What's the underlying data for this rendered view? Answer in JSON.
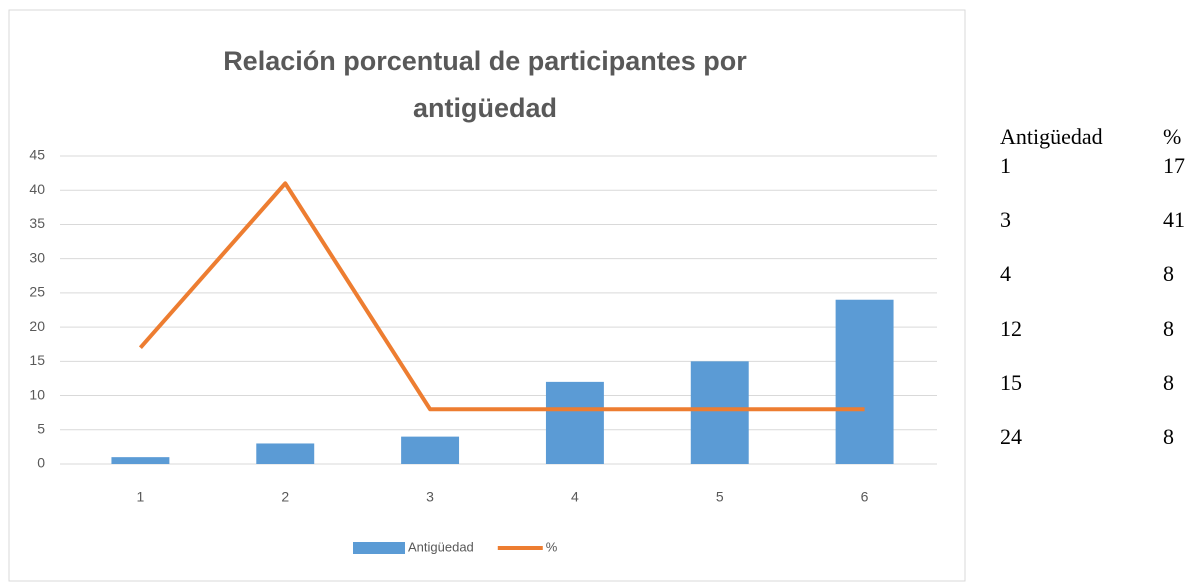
{
  "chart_data": {
    "type": "combo",
    "title": "Relación porcentual de participantes por antigüedad",
    "categories": [
      "1",
      "2",
      "3",
      "4",
      "5",
      "6"
    ],
    "series": [
      {
        "name": "Antigüedad",
        "type": "bar",
        "color": "#5b9bd5",
        "values": [
          1,
          3,
          4,
          12,
          15,
          24
        ]
      },
      {
        "name": "%",
        "type": "line",
        "color": "#ed7d31",
        "values": [
          17,
          41,
          8,
          8,
          8,
          8
        ]
      }
    ],
    "ylim": [
      0,
      45
    ],
    "yticks": [
      0,
      5,
      10,
      15,
      20,
      25,
      30,
      35,
      40,
      45
    ],
    "grid": true,
    "legend": "bottom"
  },
  "table": {
    "header": [
      "Antigüedad",
      "%"
    ],
    "rows": [
      [
        1,
        17
      ],
      [
        3,
        41
      ],
      [
        4,
        8
      ],
      [
        12,
        8
      ],
      [
        15,
        8
      ],
      [
        24,
        8
      ]
    ]
  }
}
